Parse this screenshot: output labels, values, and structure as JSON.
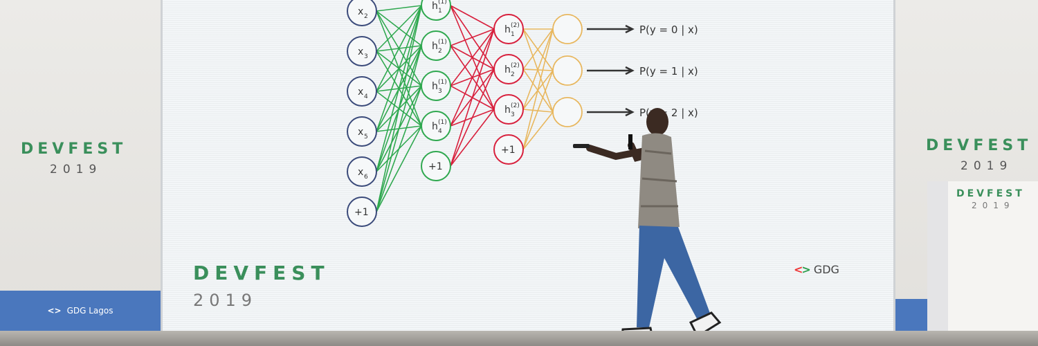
{
  "event": {
    "logo_text": "DEVFEST",
    "year": "2019",
    "organizer": "GDG Lagos",
    "gdg_badge": "GDG"
  },
  "network": {
    "inputs": [
      {
        "base": "x",
        "sub": "2"
      },
      {
        "base": "x",
        "sub": "3"
      },
      {
        "base": "x",
        "sub": "4"
      },
      {
        "base": "x",
        "sub": "5"
      },
      {
        "base": "x",
        "sub": "6"
      },
      {
        "base": "+1",
        "sub": ""
      }
    ],
    "hidden1": [
      {
        "base": "h",
        "sub": "1",
        "sup": "(1)"
      },
      {
        "base": "h",
        "sub": "2",
        "sup": "(1)"
      },
      {
        "base": "h",
        "sub": "3",
        "sup": "(1)"
      },
      {
        "base": "h",
        "sub": "4",
        "sup": "(1)"
      },
      {
        "base": "+1",
        "sub": "",
        "sup": ""
      }
    ],
    "hidden2": [
      {
        "base": "h",
        "sub": "1",
        "sup": "(2)"
      },
      {
        "base": "h",
        "sub": "2",
        "sup": "(2)"
      },
      {
        "base": "h",
        "sub": "3",
        "sup": "(2)"
      },
      {
        "base": "+1",
        "sub": "",
        "sup": ""
      }
    ],
    "outputs": [
      "P(y = 0 | x)",
      "P(y = 1 | x)",
      "P(y = 2 | x)"
    ],
    "colors": {
      "input": "#3a4a7a",
      "hidden1": "#2fa84f",
      "hidden2": "#d81f3c",
      "output": "#e8b75e",
      "arrow": "#333333"
    }
  }
}
